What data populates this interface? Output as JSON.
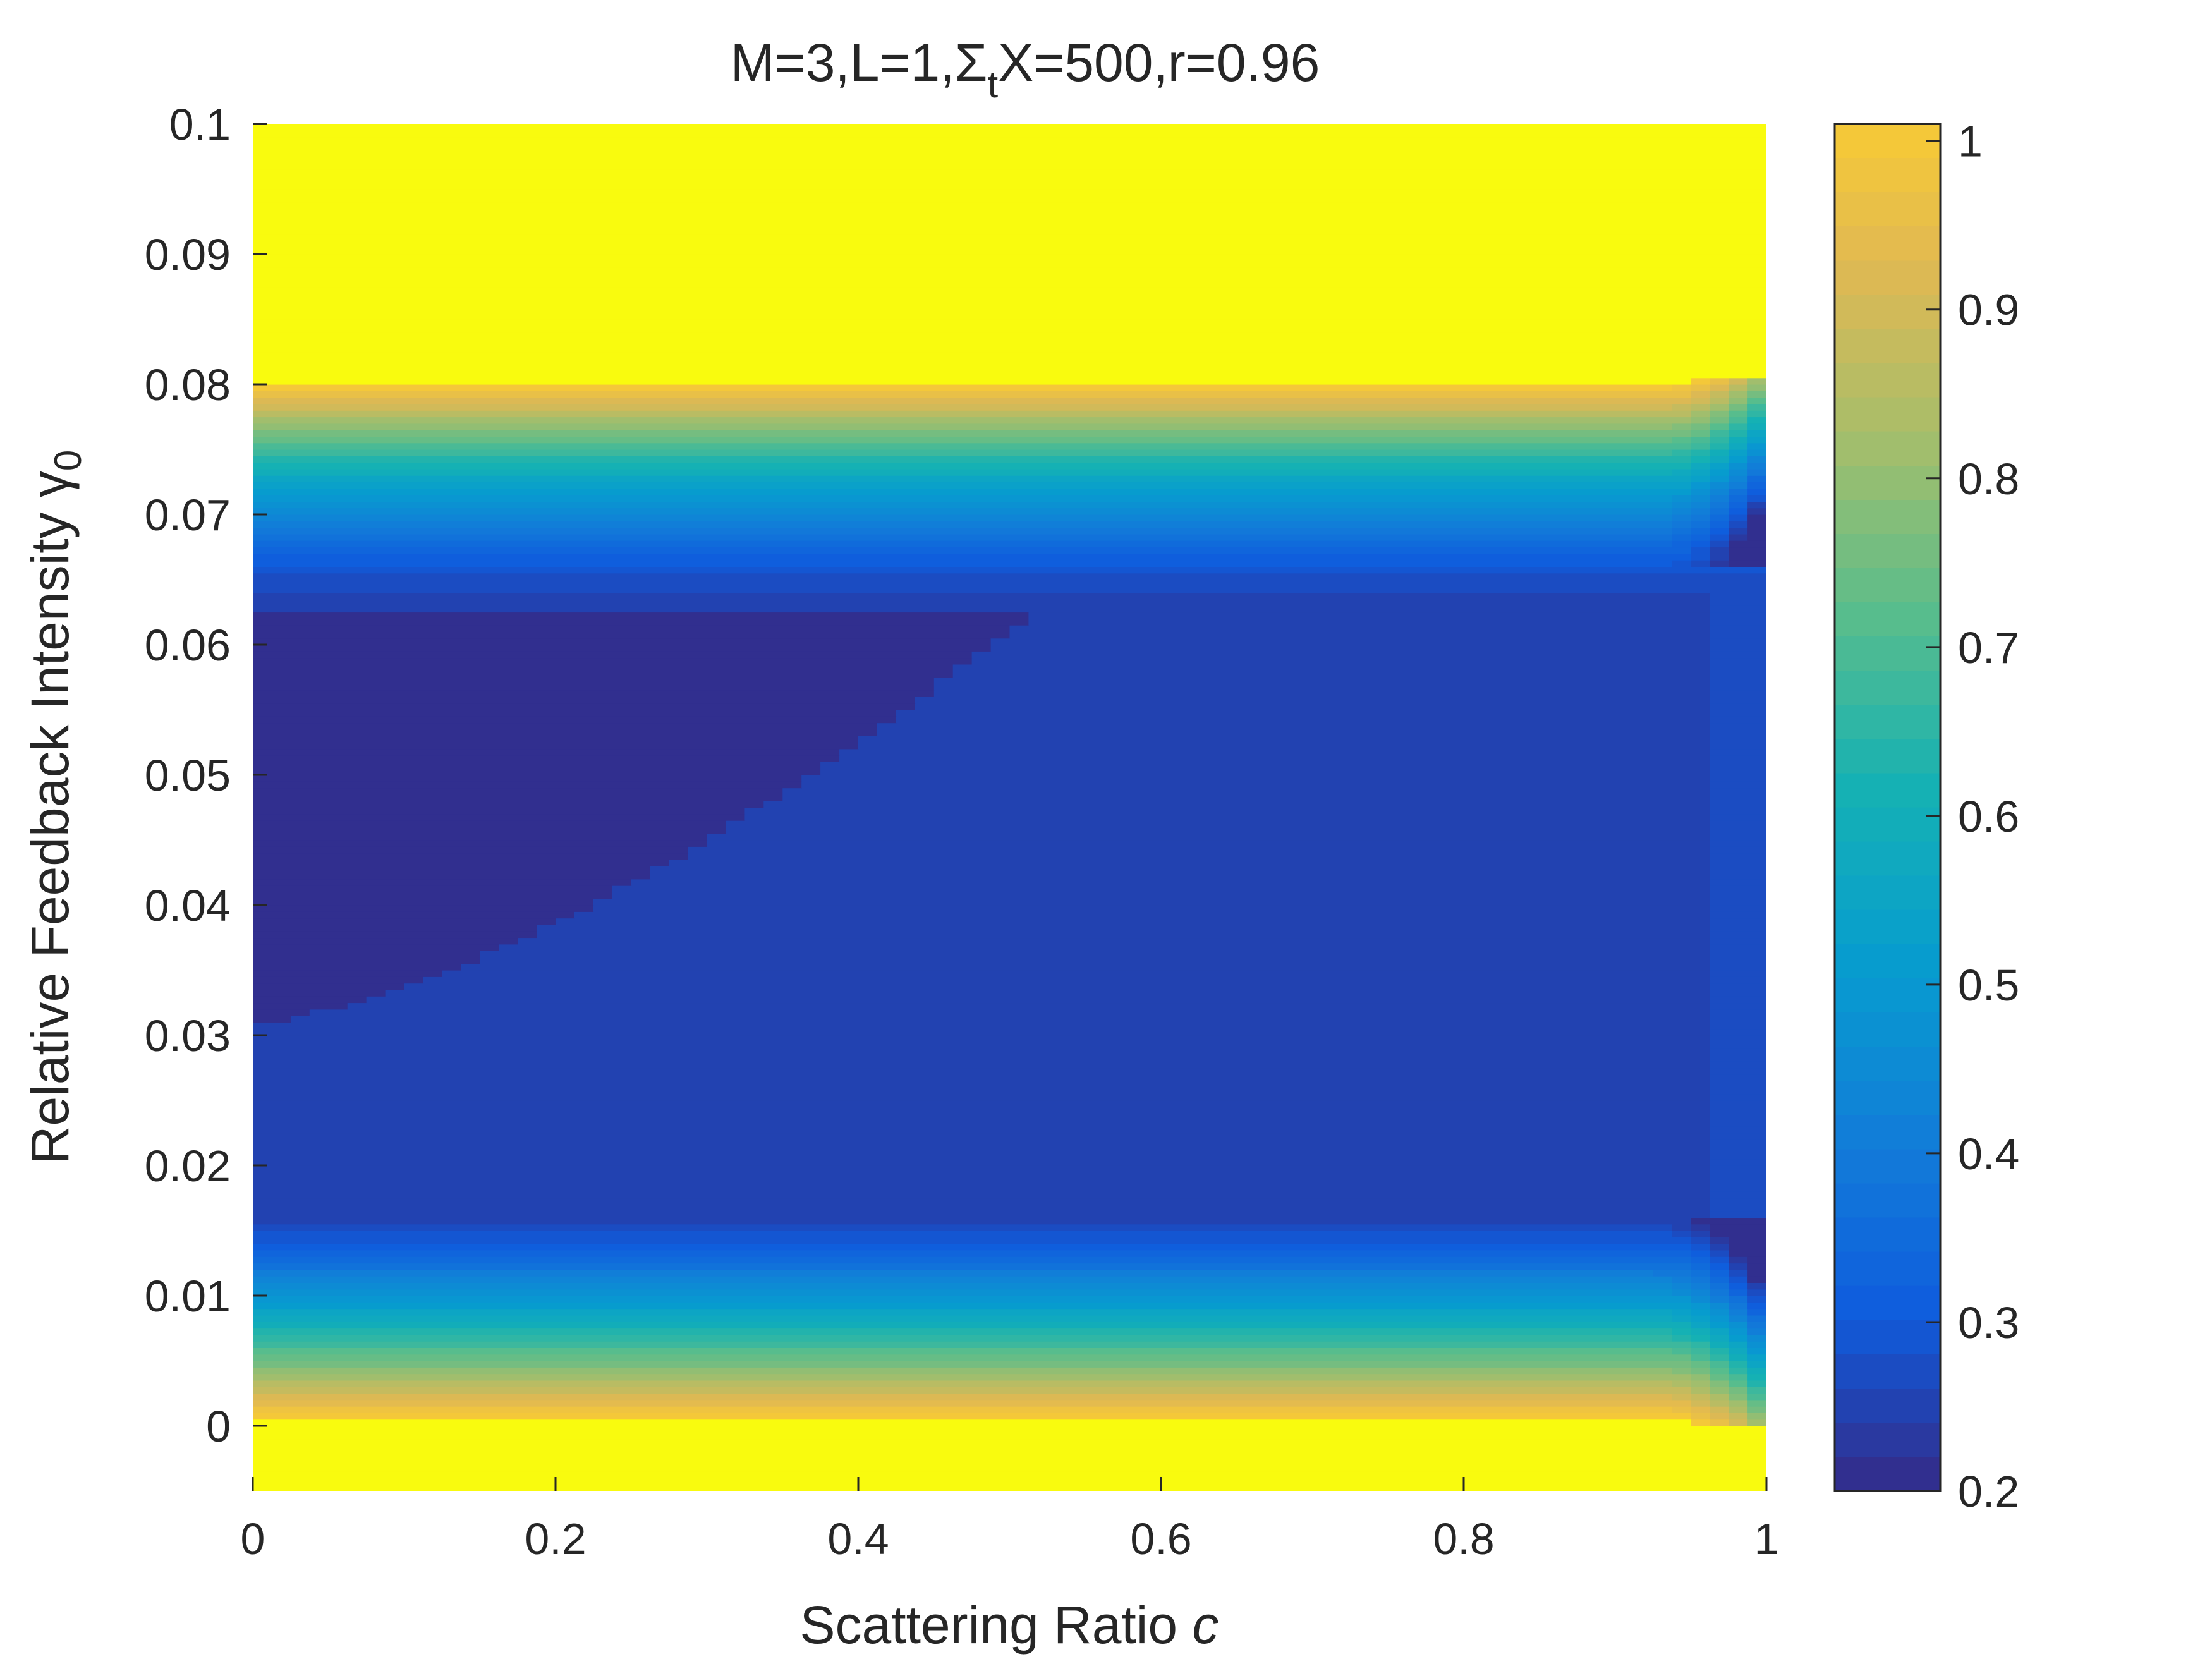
{
  "chart_data": {
    "type": "heatmap",
    "title": "M=3,L=1,ΣtX=500,r=0.96",
    "title_parts": {
      "prefix": "M=3,L=1,",
      "sigma": "Σ",
      "sigma_sub": "t",
      "suffix": "X=500,r=0.96"
    },
    "xlabel": "Scattering Ratio ",
    "xlabel_var": "c",
    "ylabel": "Relative Feedback Intensity ",
    "ylabel_var": "γ",
    "ylabel_sub": "0",
    "xlim": [
      0,
      1
    ],
    "ylim": [
      -0.005,
      0.1
    ],
    "xticks": [
      0,
      0.2,
      0.4,
      0.6,
      0.8,
      1
    ],
    "xtick_labels": [
      "0",
      "0.2",
      "0.4",
      "0.6",
      "0.8",
      "1"
    ],
    "yticks": [
      0,
      0.01,
      0.02,
      0.03,
      0.04,
      0.05,
      0.06,
      0.07,
      0.08,
      0.09,
      0.1
    ],
    "ytick_labels": [
      "0",
      "0.01",
      "0.02",
      "0.03",
      "0.04",
      "0.05",
      "0.06",
      "0.07",
      "0.08",
      "0.09",
      "0.1"
    ],
    "colorbar": {
      "range": [
        0.2,
        1.01
      ],
      "ticks": [
        0.2,
        0.3,
        0.4,
        0.5,
        0.6,
        0.7,
        0.8,
        0.9,
        1
      ],
      "tick_labels": [
        "0.2",
        "0.3",
        "0.4",
        "0.5",
        "0.6",
        "0.7",
        "0.8",
        "0.9",
        "1"
      ],
      "colormap": "parula",
      "levels": 40
    },
    "saturated_color": "#f9fb0e",
    "regions": [
      {
        "name": "upper-saturated",
        "gamma_range": [
          0.08,
          0.1
        ],
        "value": "above 1"
      },
      {
        "name": "upper-transition",
        "gamma_range": [
          0.063,
          0.08
        ],
        "value_range": [
          0.3,
          1
        ]
      },
      {
        "name": "minimum-basin",
        "gamma_range": [
          0.03,
          0.063
        ],
        "c_max": 0.52,
        "value": 0.22
      },
      {
        "name": "plateau",
        "gamma_range": [
          0.016,
          0.065
        ],
        "value": 0.25
      },
      {
        "name": "lower-transition",
        "gamma_range": [
          0.0,
          0.016
        ],
        "value_range": [
          0.3,
          1
        ]
      },
      {
        "name": "lower-saturated",
        "gamma_range": [
          -0.005,
          0.0
        ],
        "value": "above 1"
      }
    ]
  }
}
